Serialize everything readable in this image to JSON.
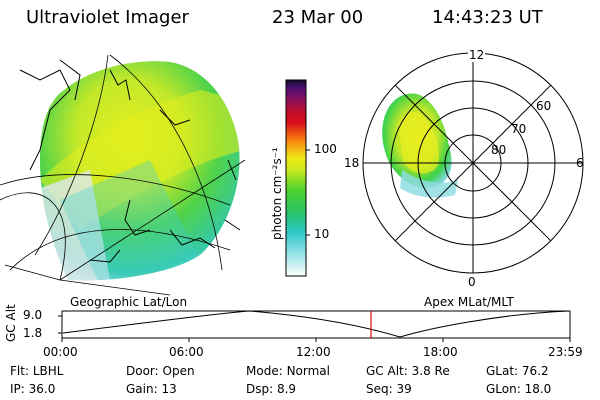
{
  "header": {
    "instrument": "Ultraviolet Imager",
    "date": "23 Mar 00",
    "time": "14:43:23 UT"
  },
  "colorbar": {
    "unit_label": "photon cm⁻²s⁻¹",
    "ticks": [
      "100",
      "10"
    ]
  },
  "polar": {
    "mlt_labels": [
      "12",
      "18",
      "6",
      "0"
    ],
    "lat_labels": [
      "60",
      "70",
      "80"
    ]
  },
  "panel_labels": {
    "left": "Geographic Lat/Lon",
    "right": "Apex MLat/MLT"
  },
  "timeline": {
    "axis_label": "GC Alt",
    "y_ticks": [
      "9.0",
      "1.8"
    ],
    "x_ticks": [
      "00:00",
      "06:00",
      "12:00",
      "18:00",
      "23:59"
    ]
  },
  "footer": {
    "row1": [
      {
        "label": "Flt:",
        "value": "LBHL"
      },
      {
        "label": "Door:",
        "value": "Open"
      },
      {
        "label": "Mode:",
        "value": "Normal"
      },
      {
        "label": "GC Alt:",
        "value": "3.8 Re"
      },
      {
        "label": "GLat:",
        "value": "76.2"
      }
    ],
    "row2": [
      {
        "label": "IP:",
        "value": "36.0"
      },
      {
        "label": "Gain:",
        "value": "13"
      },
      {
        "label": "Dsp:",
        "value": "8.9"
      },
      {
        "label": "Seq:",
        "value": "39"
      },
      {
        "label": "GLon:",
        "value": "18.0"
      }
    ]
  },
  "colors": {
    "aurora_green": "#3fd24a",
    "aurora_yellow": "#e4ef1e",
    "aurora_cyan": "#3fd0d8",
    "marker_red": "#e00000"
  }
}
